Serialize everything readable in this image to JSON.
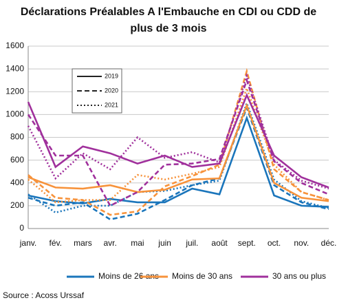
{
  "chart_data": {
    "type": "line",
    "title": [
      "Déclarations Préalables A l'Embauche en CDI ou CDD de",
      "plus de 3 mois"
    ],
    "categories": [
      "janv.",
      "fév.",
      "mars",
      "avr.",
      "mai",
      "juin",
      "juil.",
      "août",
      "sept.",
      "oct.",
      "nov.",
      "déc."
    ],
    "ylim": [
      0,
      1600
    ],
    "yticks": [
      0,
      200,
      400,
      600,
      800,
      1000,
      1200,
      1400,
      1600
    ],
    "grid": true,
    "line_styles": [
      {
        "name": "2019",
        "dash": "solid"
      },
      {
        "name": "2020",
        "dash": "dashed"
      },
      {
        "name": "2021",
        "dash": "dotted"
      }
    ],
    "groups": [
      {
        "name": "Moins de 26 ans",
        "color": "#1a75bb",
        "lines": [
          {
            "values": [
              290,
              240,
              220,
              260,
              230,
              230,
              350,
              300,
              970,
              290,
              200,
              190
            ]
          },
          {
            "values": [
              270,
              200,
              230,
              80,
              130,
              250,
              380,
              440,
              1060,
              380,
              230,
              170
            ]
          },
          {
            "values": [
              300,
              140,
              200,
              200,
              320,
              330,
              380,
              420,
              1100,
              430,
              240,
              180
            ]
          }
        ]
      },
      {
        "name": "Moins de 30 ans",
        "color": "#f7923a",
        "lines": [
          {
            "values": [
              450,
              360,
              350,
              380,
              320,
              340,
              430,
              440,
              1080,
              400,
              270,
              240
            ]
          },
          {
            "values": [
              470,
              270,
              250,
              120,
              150,
              370,
              460,
              560,
              1380,
              520,
              320,
              250
            ]
          },
          {
            "values": [
              430,
              230,
              250,
              250,
              470,
              430,
              480,
              540,
              1230,
              560,
              320,
              250
            ]
          }
        ]
      },
      {
        "name": "30 ans ou plus",
        "color": "#a0309c",
        "lines": [
          {
            "values": [
              1110,
              540,
              720,
              660,
              570,
              640,
              540,
              570,
              1170,
              640,
              450,
              360
            ]
          },
          {
            "values": [
              1000,
              640,
              640,
              200,
              320,
              560,
              570,
              610,
              1300,
              590,
              400,
              300
            ]
          },
          {
            "values": [
              900,
              440,
              660,
              520,
              800,
              620,
              670,
              580,
              1340,
              600,
              420,
              350
            ]
          }
        ]
      }
    ],
    "source": "Source : Acoss Urssaf"
  }
}
